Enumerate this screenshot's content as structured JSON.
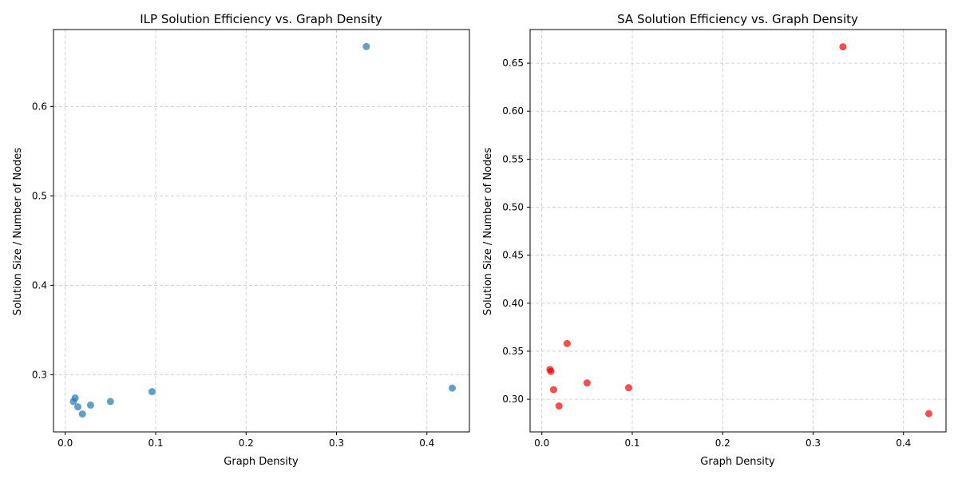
{
  "chart_data": [
    {
      "type": "scatter",
      "title": "ILP Solution Efficiency vs. Graph Density",
      "xlabel": "Graph Density",
      "ylabel": "Solution Size / Number of Nodes",
      "xlim": [
        -0.013,
        0.447
      ],
      "ylim": [
        0.236,
        0.686
      ],
      "xticks": [
        0.0,
        0.1,
        0.2,
        0.3,
        0.4
      ],
      "xtick_labels": [
        "0.0",
        "0.1",
        "0.2",
        "0.3",
        "0.4"
      ],
      "yticks": [
        0.3,
        0.4,
        0.5,
        0.6
      ],
      "ytick_labels": [
        "0.3",
        "0.4",
        "0.5",
        "0.6"
      ],
      "grid": true,
      "color": "#1f77b4",
      "points": [
        {
          "x": 0.009,
          "y": 0.27
        },
        {
          "x": 0.011,
          "y": 0.274
        },
        {
          "x": 0.014,
          "y": 0.264
        },
        {
          "x": 0.019,
          "y": 0.256
        },
        {
          "x": 0.028,
          "y": 0.266
        },
        {
          "x": 0.05,
          "y": 0.27
        },
        {
          "x": 0.096,
          "y": 0.281
        },
        {
          "x": 0.333,
          "y": 0.667
        },
        {
          "x": 0.428,
          "y": 0.285
        }
      ]
    },
    {
      "type": "scatter",
      "title": "SA Solution Efficiency vs. Graph Density",
      "xlabel": "Graph Density",
      "ylabel": "Solution Size / Number of Nodes",
      "xlim": [
        -0.013,
        0.447
      ],
      "ylim": [
        0.266,
        0.685
      ],
      "xticks": [
        0.0,
        0.1,
        0.2,
        0.3,
        0.4
      ],
      "xtick_labels": [
        "0.0",
        "0.1",
        "0.2",
        "0.3",
        "0.4"
      ],
      "yticks": [
        0.3,
        0.35,
        0.4,
        0.45,
        0.5,
        0.55,
        0.6,
        0.65
      ],
      "ytick_labels": [
        "0.30",
        "0.35",
        "0.40",
        "0.45",
        "0.50",
        "0.55",
        "0.60",
        "0.65"
      ],
      "grid": true,
      "color": "#ff0000",
      "points": [
        {
          "x": 0.009,
          "y": 0.331
        },
        {
          "x": 0.01,
          "y": 0.329
        },
        {
          "x": 0.013,
          "y": 0.31
        },
        {
          "x": 0.019,
          "y": 0.293
        },
        {
          "x": 0.028,
          "y": 0.358
        },
        {
          "x": 0.05,
          "y": 0.317
        },
        {
          "x": 0.096,
          "y": 0.312
        },
        {
          "x": 0.333,
          "y": 0.667
        },
        {
          "x": 0.428,
          "y": 0.285
        }
      ]
    }
  ]
}
